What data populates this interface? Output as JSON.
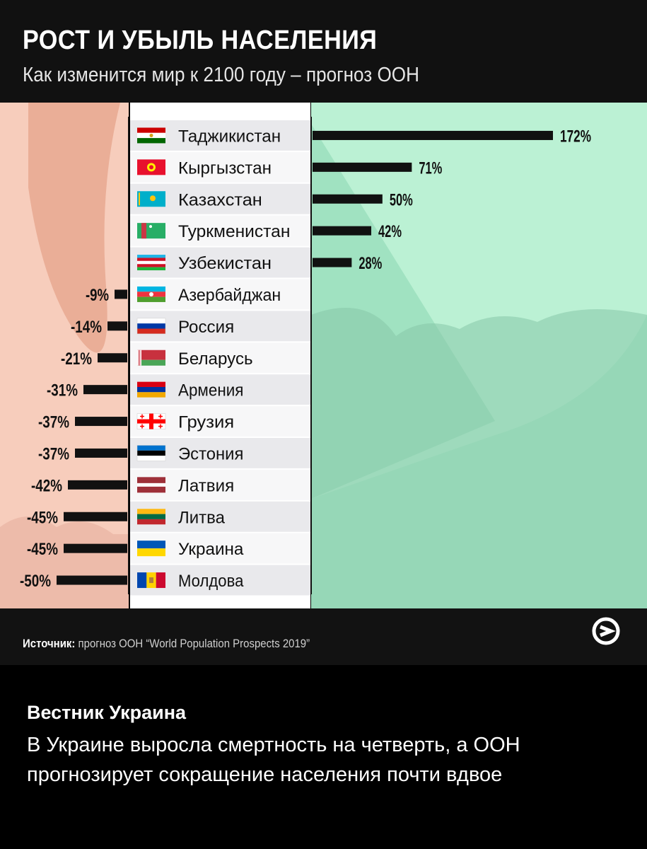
{
  "header": {
    "title": "РОСТ И УБЫЛЬ НАСЕЛЕНИЯ",
    "subtitle": "Как изменится мир к 2100 году – прогноз ООН"
  },
  "chart_data": {
    "type": "bar",
    "title": "РОСТ И УБЫЛЬ НАСЕЛЕНИЯ",
    "subtitle": "Как изменится мир к 2100 году – прогноз ООН",
    "unit": "%",
    "categories": [
      "Таджикистан",
      "Кыргызстан",
      "Казахстан",
      "Туркменистан",
      "Узбекистан",
      "Азербайджан",
      "Россия",
      "Беларусь",
      "Армения",
      "Грузия",
      "Эстония",
      "Латвия",
      "Литва",
      "Украина",
      "Молдова"
    ],
    "values": [
      172,
      71,
      50,
      42,
      28,
      -9,
      -14,
      -21,
      -31,
      -37,
      -37,
      -42,
      -45,
      -45,
      -50
    ],
    "value_labels": [
      "172%",
      "71%",
      "50%",
      "42%",
      "28%",
      "-9%",
      "-14%",
      "-21%",
      "-31%",
      "-37%",
      "-37%",
      "-42%",
      "-45%",
      "-45%",
      "-50%"
    ],
    "colors": {
      "bar": "#111111",
      "positive_bg": "#a8ecc9",
      "negative_bg": "#f7cdbc",
      "label_panel": "#ffffff",
      "label_row_alt": "#e9e9ec"
    }
  },
  "flags": [
    {
      "country": "Таджикистан",
      "icon": "flag-tajikistan-icon"
    },
    {
      "country": "Кыргызстан",
      "icon": "flag-kyrgyzstan-icon"
    },
    {
      "country": "Казахстан",
      "icon": "flag-kazakhstan-icon"
    },
    {
      "country": "Туркменистан",
      "icon": "flag-turkmenistan-icon"
    },
    {
      "country": "Узбекистан",
      "icon": "flag-uzbekistan-icon"
    },
    {
      "country": "Азербайджан",
      "icon": "flag-azerbaijan-icon"
    },
    {
      "country": "Россия",
      "icon": "flag-russia-icon"
    },
    {
      "country": "Беларусь",
      "icon": "flag-belarus-icon"
    },
    {
      "country": "Армения",
      "icon": "flag-armenia-icon"
    },
    {
      "country": "Грузия",
      "icon": "flag-georgia-icon"
    },
    {
      "country": "Эстония",
      "icon": "flag-estonia-icon"
    },
    {
      "country": "Латвия",
      "icon": "flag-latvia-icon"
    },
    {
      "country": "Литва",
      "icon": "flag-lithuania-icon"
    },
    {
      "country": "Украина",
      "icon": "flag-ukraine-icon"
    },
    {
      "country": "Молдова",
      "icon": "flag-moldova-icon"
    }
  ],
  "footer": {
    "source_label": "Источник:",
    "source_text": "прогноз ООН “World Population Prospects 2019”",
    "logo_icon": "publisher-logo-icon"
  },
  "caption": {
    "source": "Вестник Украина",
    "text": "В Украине выросла смертность на четверть, а ООН прогнозирует сокращение населения почти вдвое"
  }
}
